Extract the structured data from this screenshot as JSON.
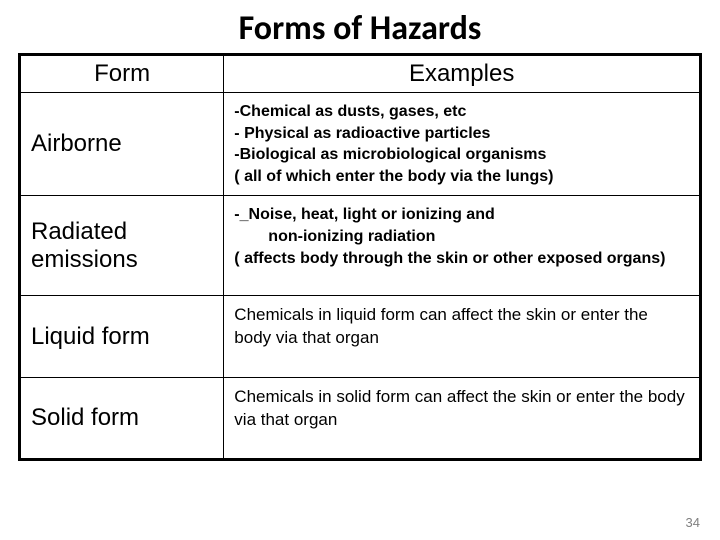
{
  "title": "Forms of Hazards",
  "headers": {
    "form": "Form",
    "examples": "Examples"
  },
  "rows": [
    {
      "form": "Airborne",
      "examples": "-Chemical as dusts, gases, etc\n- Physical as radioactive particles\n-Biological as microbiological organisms\n( all of which enter the body via the lungs)",
      "bold": true
    },
    {
      "form": "Radiated emissions",
      "examples_pre": "-_Noise, heat, light or ionizing and",
      "examples_indent": "non-ionizing radiation",
      "examples_post": "( affects body through the skin or other exposed organs)",
      "bold": true
    },
    {
      "form": "Liquid form",
      "examples": "Chemicals in liquid form can affect the skin or enter the body via that organ",
      "bold": false
    },
    {
      "form": "Solid form",
      "examples": "Chemicals in solid form can affect the skin or enter the body via that organ",
      "bold": false
    }
  ],
  "page_number": "34",
  "colors": {
    "text": "#000000",
    "border": "#000000",
    "background": "#ffffff",
    "pagenum": "#808080"
  }
}
